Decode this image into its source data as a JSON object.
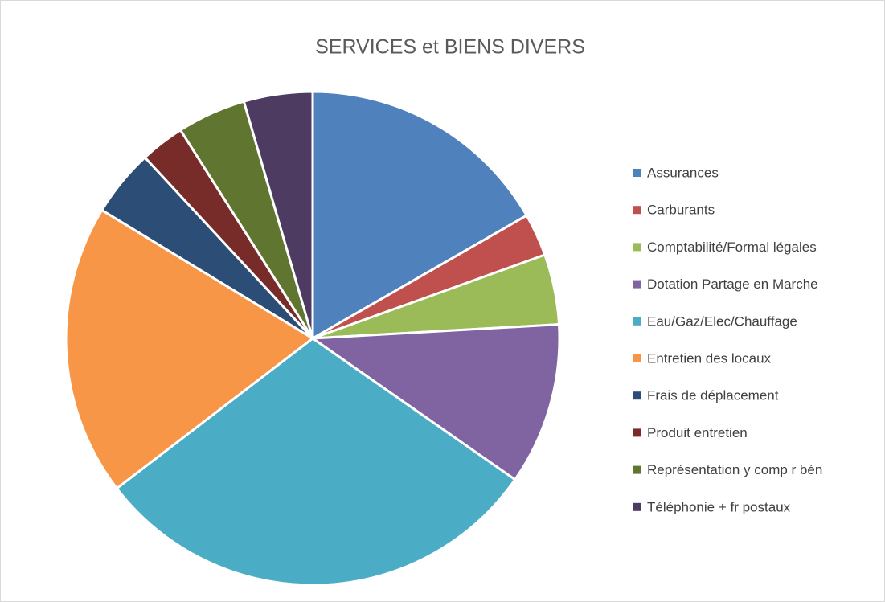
{
  "chart_data": {
    "type": "pie",
    "title": "SERVICES et BIENS DIVERS",
    "categories": [
      "Assurances",
      "Carburants",
      "Comptabilité/Formal légales",
      "Dotation Partage en Marche",
      "Eau/Gaz/Elec/Chauffage",
      "Entretien des locaux",
      "Frais de déplacement",
      "Produit entretien",
      "Représentation y comp r bén",
      "Téléphonie + fr postaux"
    ],
    "values": [
      16.7,
      2.8,
      4.6,
      10.6,
      29.9,
      19.1,
      4.4,
      2.9,
      4.5,
      4.5
    ],
    "colors": [
      "#4f81bd",
      "#c0504d",
      "#9bbb59",
      "#8064a2",
      "#4bacc6",
      "#f79646",
      "#2c4d75",
      "#772c2a",
      "#5f7530",
      "#4d3b62"
    ],
    "legend": "right"
  }
}
